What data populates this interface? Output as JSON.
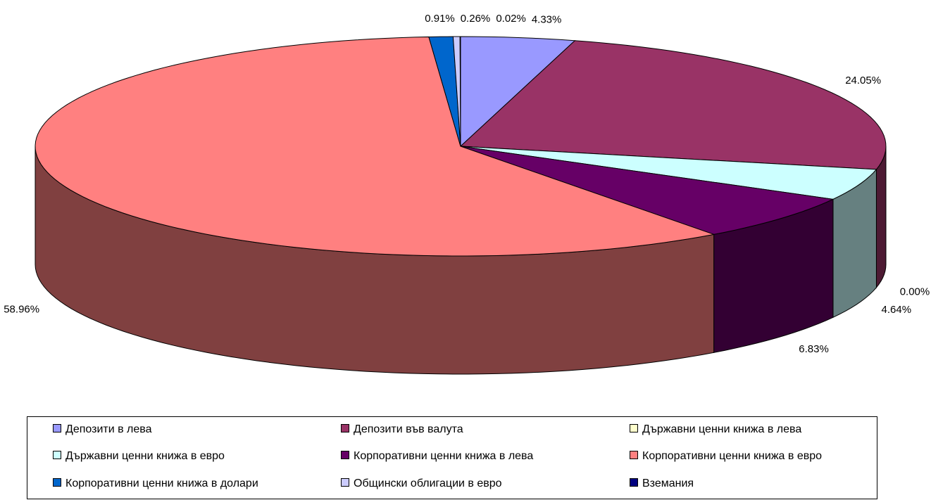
{
  "chart_data": {
    "type": "pie",
    "style": "3d",
    "start_angle_deg": 90,
    "direction": "clockwise",
    "categories": [
      "Депозити в лева",
      "Депозити във валута",
      "Държавни ценни книжа в лева",
      "Държавни ценни книжа в евро",
      "Корпоративни ценни книжа в лева",
      "Корпоративни ценни книжа в евро",
      "Корпоративни ценни книжа в долари",
      "Общински облигации в евро",
      "Вземания"
    ],
    "values": [
      4.33,
      24.05,
      0.0,
      4.64,
      6.83,
      58.96,
      0.91,
      0.26,
      0.02
    ],
    "data_labels": [
      "4.33%",
      "24.05%",
      "0.00%",
      "4.64%",
      "6.83%",
      "58.96%",
      "0.91%",
      "0.26%",
      "0.02%"
    ],
    "colors": [
      "#9999FF",
      "#993366",
      "#FFFFCC",
      "#CCFFFF",
      "#660066",
      "#FF8080",
      "#0066CC",
      "#CCCCFF",
      "#000080"
    ],
    "legend_position": "bottom"
  }
}
